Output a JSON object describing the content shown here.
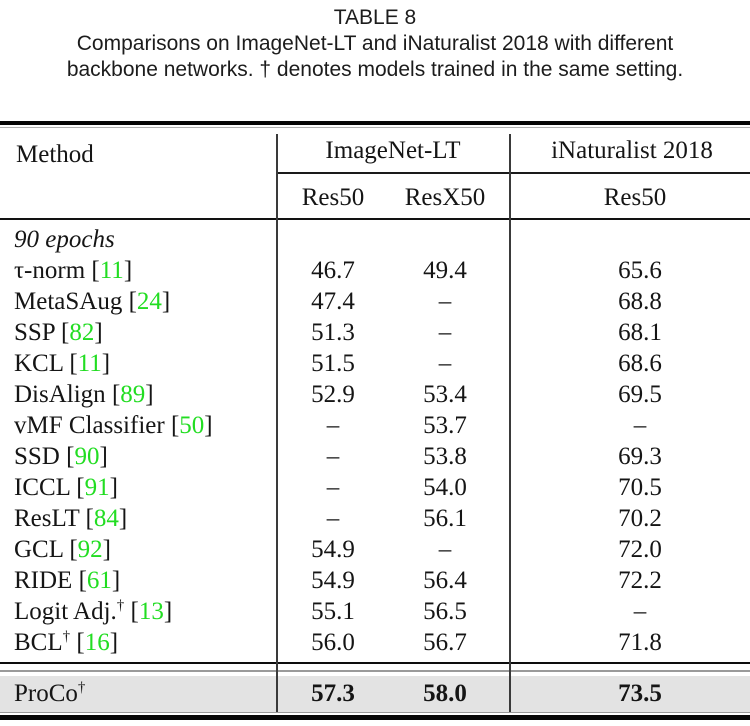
{
  "caption": {
    "label": "TABLE 8",
    "line1": "Comparisons on ImageNet-LT and iNaturalist 2018 with different",
    "line2": "backbone networks. † denotes models trained in the same setting."
  },
  "table": {
    "dagger": "†",
    "citation_open": "[",
    "citation_close": "]",
    "colors": {
      "citation_green": "#22dd22",
      "highlight_bg": "#e3e3e3",
      "rule_black": "#0d0d0d"
    },
    "header": {
      "method": "Method",
      "group_imagenet": "ImageNet-LT",
      "group_inat": "iNaturalist 2018",
      "sub_imagenet_res50": "Res50",
      "sub_imagenet_resx50": "ResX50",
      "sub_inat_res50": "Res50"
    },
    "rows": [
      {
        "name": "90 epochs",
        "italic": true,
        "section": true,
        "res50": "",
        "resx50": "",
        "inat": ""
      },
      {
        "name": "τ-norm",
        "cite": "11",
        "res50": "46.7",
        "resx50": "49.4",
        "inat": "65.6"
      },
      {
        "name": "MetaSAug",
        "cite": "24",
        "res50": "47.4",
        "resx50": "–",
        "inat": "68.8"
      },
      {
        "name": "SSP",
        "cite": "82",
        "res50": "51.3",
        "resx50": "–",
        "inat": "68.1"
      },
      {
        "name": "KCL",
        "cite": "11",
        "res50": "51.5",
        "resx50": "–",
        "inat": "68.6"
      },
      {
        "name": "DisAlign",
        "cite": "89",
        "res50": "52.9",
        "resx50": "53.4",
        "inat": "69.5"
      },
      {
        "name": "vMF Classifier",
        "cite": "50",
        "res50": "–",
        "resx50": "53.7",
        "inat": "–"
      },
      {
        "name": "SSD",
        "cite": "90",
        "res50": "–",
        "resx50": "53.8",
        "inat": "69.3"
      },
      {
        "name": "ICCL",
        "cite": "91",
        "res50": "–",
        "resx50": "54.0",
        "inat": "70.5"
      },
      {
        "name": "ResLT",
        "cite": "84",
        "res50": "–",
        "resx50": "56.1",
        "inat": "70.2"
      },
      {
        "name": "GCL",
        "cite": "92",
        "res50": "54.9",
        "resx50": "–",
        "inat": "72.0"
      },
      {
        "name": "RIDE",
        "cite": "61",
        "res50": "54.9",
        "resx50": "56.4",
        "inat": "72.2"
      },
      {
        "name": "Logit Adj.",
        "dagger": true,
        "cite": "13",
        "res50": "55.1",
        "resx50": "56.5",
        "inat": "–"
      },
      {
        "name": "BCL",
        "dagger": true,
        "cite": "16",
        "res50": "56.0",
        "resx50": "56.7",
        "inat": "71.8"
      }
    ],
    "highlight_row": {
      "name": "ProCo",
      "dagger": true,
      "res50": "57.3",
      "resx50": "58.0",
      "inat": "73.5"
    }
  }
}
